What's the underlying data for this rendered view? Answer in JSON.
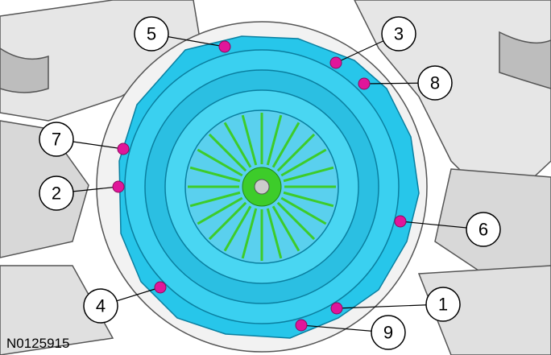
{
  "callouts": [
    {
      "label": "5"
    },
    {
      "label": "3"
    },
    {
      "label": "8"
    },
    {
      "label": "7"
    },
    {
      "label": "2"
    },
    {
      "label": "6"
    },
    {
      "label": "4"
    },
    {
      "label": "1"
    },
    {
      "label": "9"
    }
  ],
  "figure_id": "N0125915"
}
